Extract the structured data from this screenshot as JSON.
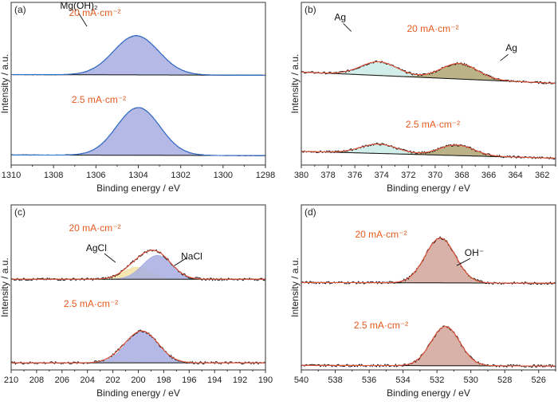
{
  "chart_data": [
    {
      "panel": "(a)",
      "type": "line",
      "xlabel": "Binding energy / eV",
      "ylabel": "Intensity / a.u.",
      "xlim": [
        1310,
        1298
      ],
      "xticks": [
        1310,
        1308,
        1306,
        1304,
        1302,
        1300,
        1298
      ],
      "baseline_color": "#111111",
      "fit_color": "#2f6fd1",
      "peak_colors": [
        "#a7aee0"
      ],
      "spectra": [
        {
          "condition": "20 mA·cm⁻²",
          "peaks": [
            {
              "center": 1304.1,
              "fwhm": 2.5,
              "height": 0.6,
              "color": "#a7aee0"
            }
          ],
          "baseline_left": 0.03,
          "baseline_right": 0.02
        },
        {
          "condition": "2.5 mA·cm⁻²",
          "peaks": [
            {
              "center": 1304.0,
              "fwhm": 2.4,
              "height": 0.73,
              "color": "#a7aee0"
            }
          ],
          "baseline_left": 0.02,
          "baseline_right": 0.01
        }
      ],
      "annotations": [
        {
          "text": "Mg(OH)₂",
          "x": 1306.8,
          "y": 0.96
        }
      ]
    },
    {
      "panel": "(b)",
      "type": "line",
      "xlabel": "Binding energy / eV",
      "ylabel": "Intensity / a.u.",
      "xlim": [
        380,
        361
      ],
      "xticks": [
        380,
        378,
        376,
        374,
        372,
        370,
        368,
        366,
        364,
        362
      ],
      "baseline_color": "#111111",
      "fit_color": "#e8553a",
      "peak_colors": [
        "#c9ebe6",
        "#b0a572"
      ],
      "spectra": [
        {
          "condition": "20 mA·cm⁻²",
          "peaks": [
            {
              "center": 374.2,
              "fwhm": 3.2,
              "height": 0.22,
              "color": "#c9ebe6"
            },
            {
              "center": 368.2,
              "fwhm": 3.2,
              "height": 0.25,
              "color": "#b0a572"
            }
          ],
          "baseline_left": 0.2,
          "baseline_right": 0.02
        },
        {
          "condition": "2.5 mA·cm⁻²",
          "peaks": [
            {
              "center": 374.2,
              "fwhm": 3.2,
              "height": 0.15,
              "color": "#c9ebe6"
            },
            {
              "center": 368.4,
              "fwhm": 3.0,
              "height": 0.17,
              "color": "#b0a572"
            }
          ],
          "baseline_left": 0.13,
          "baseline_right": 0.02
        }
      ],
      "annotations": [
        {
          "text": "Ag",
          "x": 377.1,
          "y": 0.89
        },
        {
          "text": "Ag",
          "x": 364.3,
          "y": 0.7
        }
      ]
    },
    {
      "panel": "(c)",
      "type": "line",
      "xlabel": "Binding energy / eV",
      "ylabel": "Intensity / a.u.",
      "xlim": [
        210,
        190
      ],
      "xticks": [
        210,
        208,
        206,
        204,
        202,
        200,
        198,
        196,
        194,
        192,
        190
      ],
      "baseline_color": "#111111",
      "fit_color": "#e8553a",
      "peak_colors": [
        "#f5e3a4",
        "#a7aee0"
      ],
      "spectra": [
        {
          "condition": "20 mA·cm⁻²",
          "peaks": [
            {
              "center": 200.1,
              "fwhm": 2.6,
              "height": 0.17,
              "color": "#f5e3a4"
            },
            {
              "center": 198.5,
              "fwhm": 2.7,
              "height": 0.34,
              "color": "#a7aee0"
            }
          ],
          "baseline_left": 0.02,
          "baseline_right": 0.02
        },
        {
          "condition": "2.5 mA·cm⁻²",
          "peaks": [
            {
              "center": 201.6,
              "fwhm": 2.2,
              "height": 0.03,
              "color": "#f5e3a4"
            },
            {
              "center": 199.7,
              "fwhm": 3.0,
              "height": 0.45,
              "color": "#a7aee0"
            }
          ],
          "baseline_left": 0.01,
          "baseline_right": 0.01
        }
      ],
      "annotations": [
        {
          "text": "AgCl",
          "x": 203.3,
          "y": 0.72
        },
        {
          "text": "NaCl",
          "x": 195.8,
          "y": 0.67
        }
      ]
    },
    {
      "panel": "(d)",
      "type": "line",
      "xlabel": "Binding energy / eV",
      "ylabel": "Intensity / a.u.",
      "xlim": [
        540,
        525
      ],
      "xticks": [
        540,
        538,
        536,
        534,
        532,
        530,
        528,
        526
      ],
      "baseline_color": "#111111",
      "fit_color": "#e8553a",
      "peak_colors": [
        "#d1a49a"
      ],
      "spectra": [
        {
          "condition": "20 mA·cm⁻²",
          "peaks": [
            {
              "center": 531.8,
              "fwhm": 2.1,
              "height": 0.64,
              "color": "#d1a49a"
            }
          ],
          "baseline_left": 0.03,
          "baseline_right": 0.02
        },
        {
          "condition": "2.5 mA·cm⁻²",
          "peaks": [
            {
              "center": 531.5,
              "fwhm": 2.0,
              "height": 0.56,
              "color": "#d1a49a"
            }
          ],
          "baseline_left": 0.02,
          "baseline_right": 0.01
        }
      ],
      "annotations": [
        {
          "text": "OH⁻",
          "x": 529.8,
          "y": 0.69
        }
      ]
    }
  ]
}
